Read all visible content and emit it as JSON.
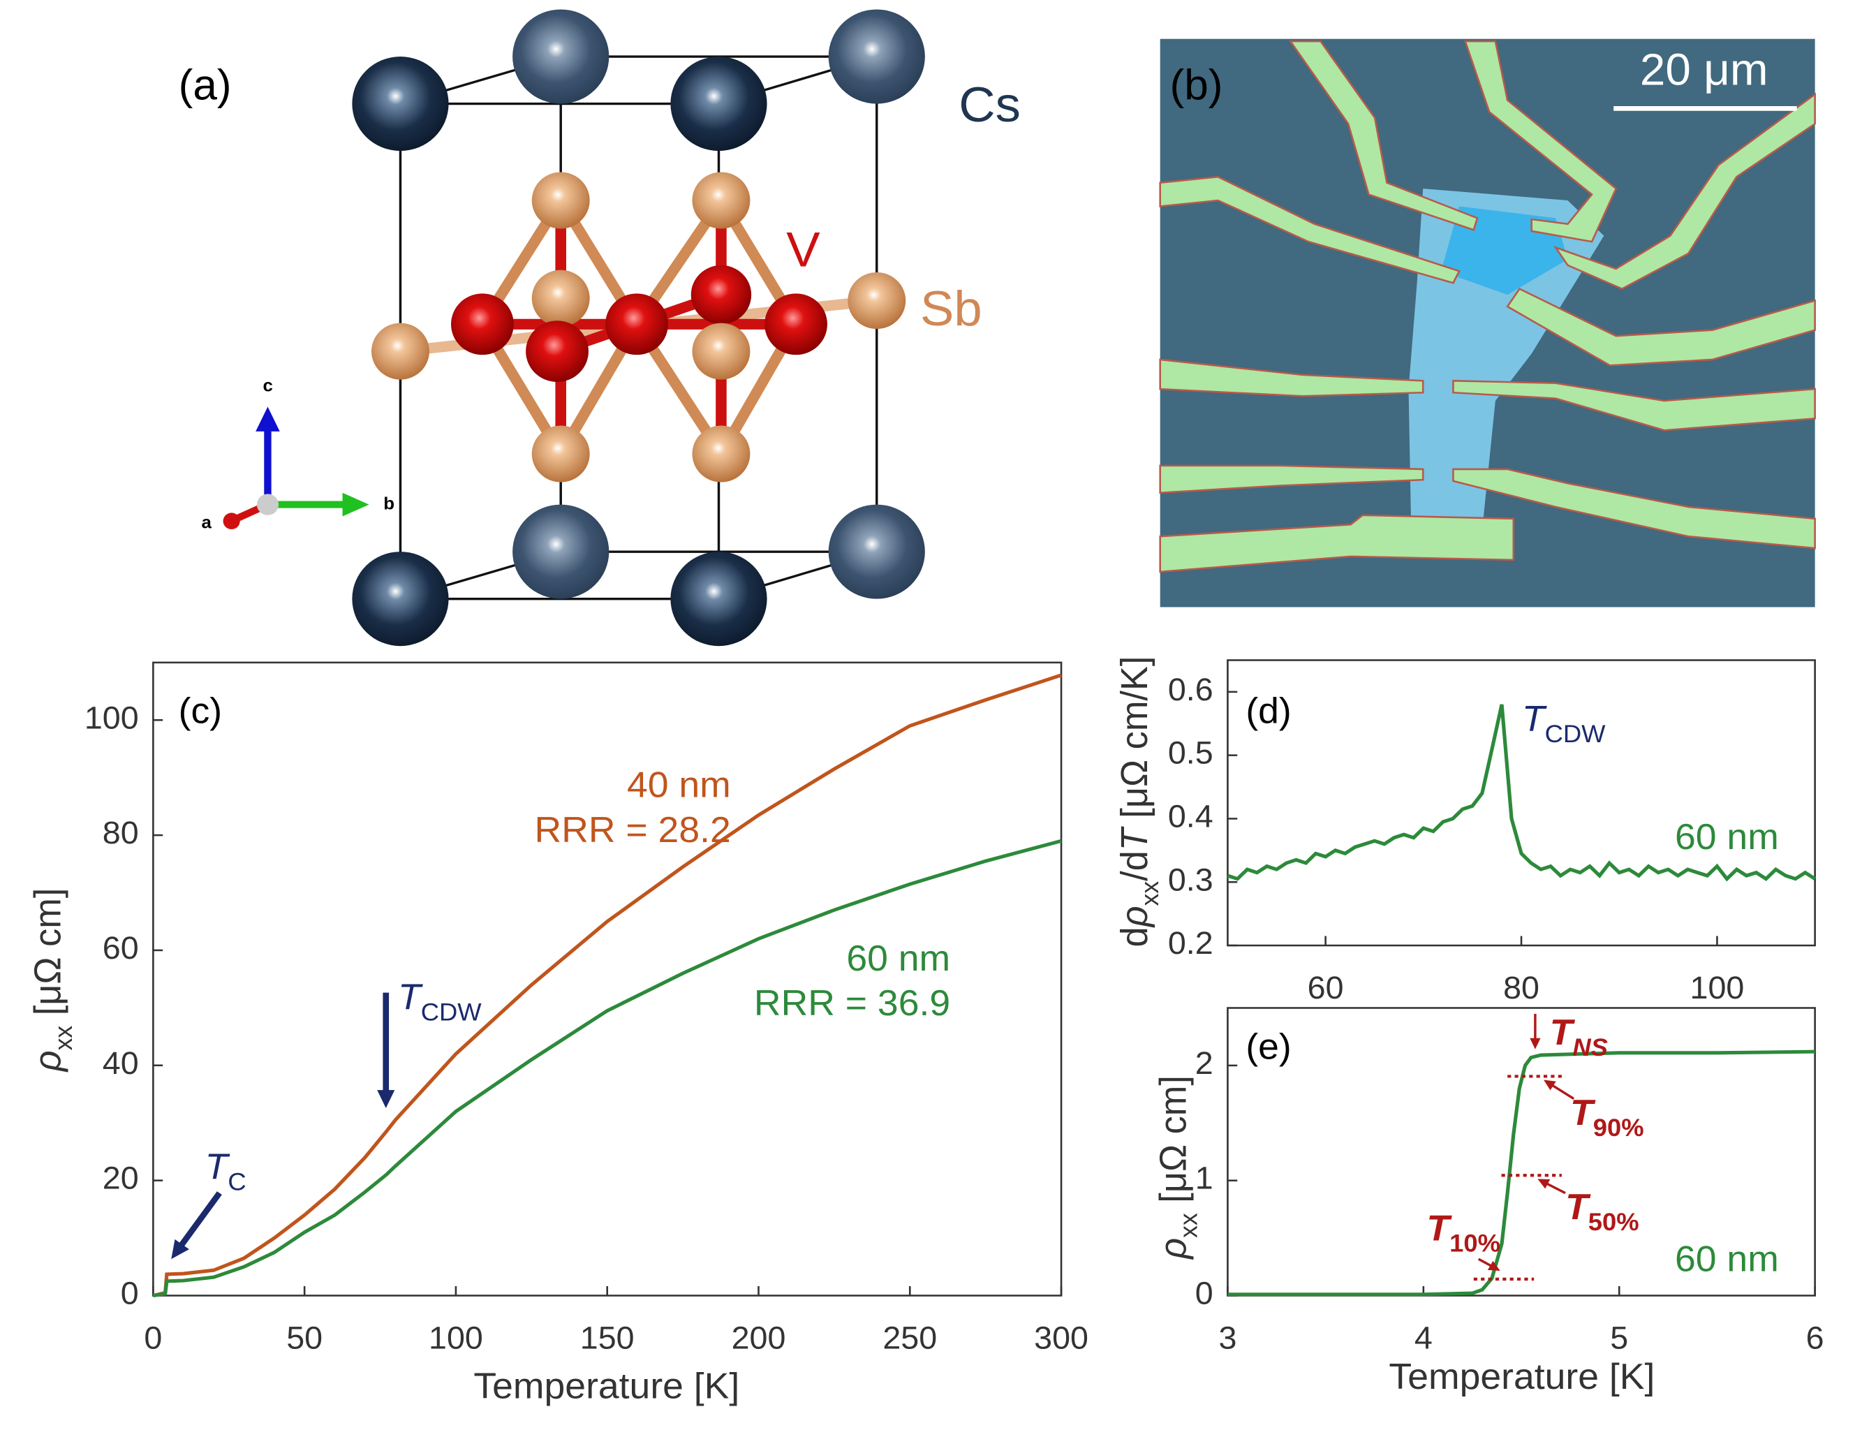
{
  "structure": {
    "label": "(a)",
    "atoms": [
      "Cs",
      "V",
      "Sb"
    ],
    "axes": [
      "a",
      "b",
      "c"
    ]
  },
  "micrograph": {
    "label": "(b)",
    "scale": "20 μm"
  },
  "chart_data": [
    {
      "type": "line",
      "x": [
        0,
        4,
        4.5,
        10,
        20,
        30,
        40,
        50,
        60,
        70,
        77,
        80,
        100,
        125,
        150,
        175,
        200,
        225,
        250,
        275,
        300
      ],
      "series": [
        {
          "color": "#c0551c",
          "values": [
            0,
            0.5,
            3.7,
            3.8,
            4.4,
            6.5,
            10,
            14,
            18.5,
            24,
            28.5,
            30.5,
            42,
            54,
            65,
            74.5,
            83.5,
            91.5,
            99,
            103.5,
            107.8
          ]
        },
        {
          "color": "#2c8a3a",
          "values": [
            0,
            0.3,
            2.5,
            2.6,
            3.2,
            5,
            7.5,
            11,
            14,
            18,
            21,
            22.5,
            32,
            41,
            49.5,
            56,
            62,
            67,
            71.5,
            75.5,
            79
          ]
        }
      ],
      "xlim": [
        0,
        300
      ],
      "xticks": [
        0,
        50,
        100,
        150,
        200,
        250,
        300
      ],
      "ylim": [
        0,
        110
      ],
      "yticks": [
        0,
        20,
        40,
        60,
        80,
        100
      ],
      "xlabel": {
        "parts": [
          {
            "text": "Temperature [K]"
          }
        ]
      },
      "ylabel": {
        "parts": [
          {
            "text": "ρ",
            "style": "italic"
          },
          {
            "text": "xx",
            "style": "sub"
          },
          {
            "text": "  [μΩ cm]"
          }
        ]
      },
      "annotations": [
        {
          "parts": [
            {
              "text": "(c)"
            }
          ],
          "color": "#000000"
        },
        {
          "parts": [
            {
              "text": "40 nm"
            }
          ],
          "color": "#c0551c"
        },
        {
          "parts": [
            {
              "text": "RRR = 28.2"
            }
          ],
          "color": "#c0551c"
        },
        {
          "parts": [
            {
              "text": "60 nm"
            }
          ],
          "color": "#2c8a3a"
        },
        {
          "parts": [
            {
              "text": "RRR = 36.9"
            }
          ],
          "color": "#2c8a3a"
        },
        {
          "parts": [
            {
              "text": "T",
              "style": "italic"
            },
            {
              "text": "CDW",
              "style": "sub"
            }
          ],
          "color": "#1a2a6c"
        },
        {
          "parts": [
            {
              "text": "T",
              "style": "italic"
            },
            {
              "text": "C",
              "style": "sub"
            }
          ],
          "color": "#1a2a6c"
        }
      ]
    },
    {
      "type": "line",
      "x": [
        50,
        51,
        52,
        53,
        54,
        55,
        56,
        57,
        58,
        59,
        60,
        61,
        62,
        63,
        64,
        65,
        66,
        67,
        68,
        69,
        70,
        71,
        72,
        73,
        74,
        75,
        76,
        77,
        78,
        79,
        80,
        81,
        82,
        83,
        84,
        85,
        86,
        87,
        88,
        89,
        90,
        91,
        92,
        93,
        94,
        95,
        96,
        97,
        98,
        99,
        100,
        101,
        102,
        103,
        104,
        105,
        106,
        107,
        108,
        109,
        110
      ],
      "series": [
        {
          "color": "#2c8a3a",
          "values": [
            0.31,
            0.305,
            0.32,
            0.315,
            0.325,
            0.32,
            0.33,
            0.335,
            0.33,
            0.345,
            0.34,
            0.35,
            0.345,
            0.355,
            0.36,
            0.365,
            0.36,
            0.37,
            0.375,
            0.37,
            0.385,
            0.38,
            0.395,
            0.4,
            0.415,
            0.42,
            0.44,
            0.51,
            0.58,
            0.4,
            0.345,
            0.33,
            0.32,
            0.325,
            0.31,
            0.32,
            0.315,
            0.325,
            0.31,
            0.33,
            0.315,
            0.32,
            0.31,
            0.325,
            0.315,
            0.32,
            0.31,
            0.32,
            0.315,
            0.31,
            0.325,
            0.305,
            0.32,
            0.31,
            0.315,
            0.305,
            0.32,
            0.31,
            0.305,
            0.315,
            0.305
          ]
        }
      ],
      "xlim": [
        50,
        110
      ],
      "xticks": [
        60,
        80,
        100
      ],
      "ylim": [
        0.2,
        0.65
      ],
      "yticks": [
        0.2,
        0.3,
        0.4,
        0.5,
        0.6
      ],
      "ylabel": {
        "parts": [
          {
            "text": "d"
          },
          {
            "text": "ρ",
            "style": "italic"
          },
          {
            "text": "xx",
            "style": "sub"
          },
          {
            "text": "/d"
          },
          {
            "text": "T",
            "style": "italic"
          },
          {
            "text": "  [μΩ cm/K]"
          }
        ]
      },
      "annotations": [
        {
          "parts": [
            {
              "text": "(d)"
            }
          ],
          "color": "#000000"
        },
        {
          "parts": [
            {
              "text": "T",
              "style": "italic"
            },
            {
              "text": "CDW",
              "style": "sub"
            }
          ],
          "color": "#1a2a6c"
        },
        {
          "parts": [
            {
              "text": "60 nm"
            }
          ],
          "color": "#2c8a3a"
        }
      ]
    },
    {
      "type": "line",
      "x": [
        3,
        3.5,
        4,
        4.25,
        4.3,
        4.35,
        4.4,
        4.43,
        4.46,
        4.49,
        4.52,
        4.55,
        4.6,
        4.8,
        5,
        5.5,
        6
      ],
      "series": [
        {
          "color": "#2c8a3a",
          "values": [
            0.01,
            0.01,
            0.01,
            0.02,
            0.05,
            0.15,
            0.45,
            0.9,
            1.4,
            1.8,
            2.0,
            2.07,
            2.09,
            2.1,
            2.11,
            2.11,
            2.12
          ]
        }
      ],
      "xlim": [
        3,
        6
      ],
      "xticks": [
        3,
        4,
        5,
        6
      ],
      "ylim": [
        0,
        2.5
      ],
      "yticks": [
        0,
        1,
        2
      ],
      "xlabel": {
        "parts": [
          {
            "text": "Temperature [K]"
          }
        ]
      },
      "ylabel": {
        "parts": [
          {
            "text": "ρ",
            "style": "italic"
          },
          {
            "text": "xx",
            "style": "sub"
          },
          {
            "text": "  [μΩ cm]"
          }
        ]
      },
      "annotations": [
        {
          "parts": [
            {
              "text": "(e)"
            }
          ],
          "color": "#000000"
        },
        {
          "parts": [
            {
              "text": "T",
              "style": "bold-italic"
            },
            {
              "text": "NS",
              "style": "sub-bold-italic"
            }
          ],
          "color": "#b01818"
        },
        {
          "parts": [
            {
              "text": "T",
              "style": "bold-italic"
            },
            {
              "text": "90%",
              "style": "sub-bold"
            }
          ],
          "color": "#b01818"
        },
        {
          "parts": [
            {
              "text": "T",
              "style": "bold-italic"
            },
            {
              "text": "50%",
              "style": "sub-bold"
            }
          ],
          "color": "#b01818"
        },
        {
          "parts": [
            {
              "text": "T",
              "style": "bold-italic"
            },
            {
              "text": "10%",
              "style": "sub-bold"
            }
          ],
          "color": "#b01818"
        },
        {
          "parts": [
            {
              "text": "60 nm"
            }
          ],
          "color": "#2c8a3a"
        }
      ]
    }
  ]
}
